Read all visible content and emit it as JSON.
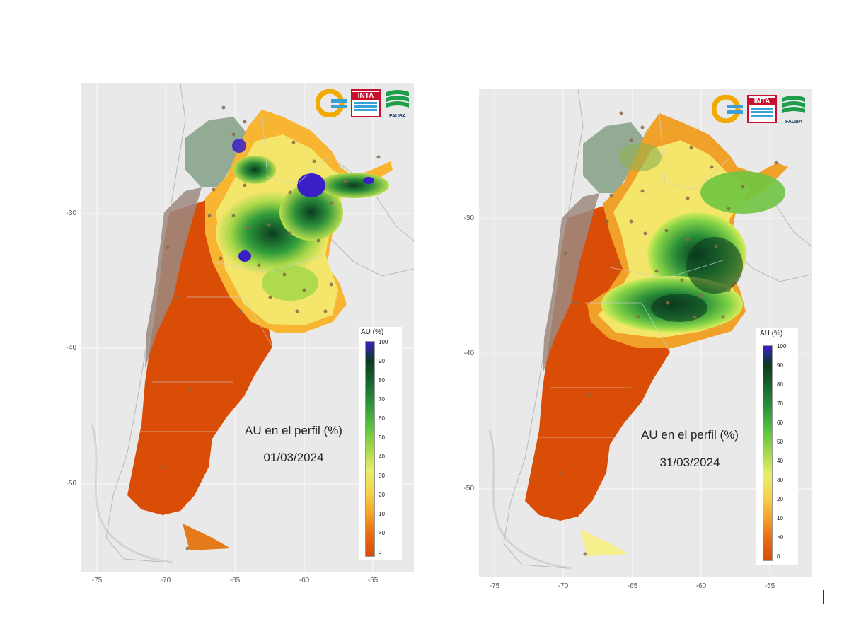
{
  "chart_data": [
    {
      "type": "heatmap",
      "title": "AU en el perfil (%)",
      "date": "01/03/2024",
      "legend_title": "AU (%)",
      "legend_levels": [
        "100",
        "90",
        "80",
        "70",
        "60",
        "50",
        "40",
        "30",
        "20",
        "10",
        ">0",
        "0"
      ],
      "x_ticks": [
        "-75",
        "-70",
        "-65",
        "-60",
        "-55"
      ],
      "y_ticks": [
        "-30",
        "-40",
        "-50"
      ],
      "logos": {
        "inta": "INTA",
        "fauba": "FAUBA"
      },
      "grid": true
    },
    {
      "type": "heatmap",
      "title": "AU en el perfil (%)",
      "date": "31/03/2024",
      "legend_title": "AU (%)",
      "legend_levels": [
        "100",
        "90",
        "80",
        "70",
        "60",
        "50",
        "40",
        "30",
        "20",
        "10",
        ">0",
        "0"
      ],
      "x_ticks": [
        "-75",
        "-70",
        "-65",
        "-60",
        "-55"
      ],
      "y_ticks": [
        "-30",
        "-40",
        "-50"
      ],
      "logos": {
        "inta": "INTA",
        "fauba": "FAUBA"
      },
      "grid": true
    }
  ]
}
